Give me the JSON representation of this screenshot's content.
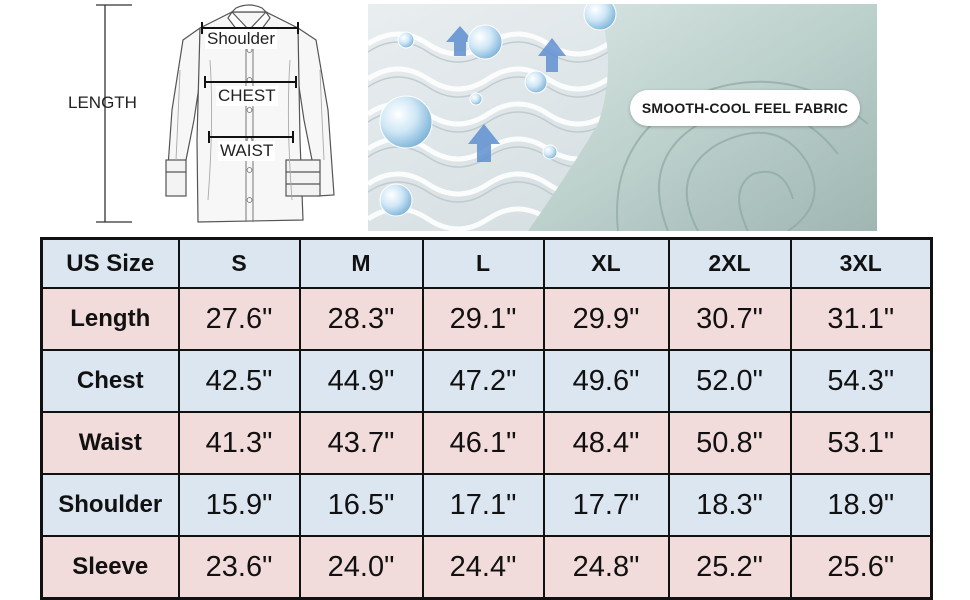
{
  "diagram": {
    "length_label": "LENGTH",
    "shoulder_label": "Shoulder",
    "chest_label": "CHEST",
    "waist_label": "WAIST"
  },
  "fabric": {
    "callout": "SMOOTH-COOL FEEL FABRIC"
  },
  "table": {
    "header_label": "US Size",
    "sizes": [
      "S",
      "M",
      "L",
      "XL",
      "2XL",
      "3XL"
    ],
    "rows": [
      {
        "label": "Length",
        "values": [
          "27.6\"",
          "28.3\"",
          "29.1\"",
          "29.9\"",
          "30.7\"",
          "31.1\""
        ]
      },
      {
        "label": "Chest",
        "values": [
          "42.5\"",
          "44.9\"",
          "47.2\"",
          "49.6\"",
          "52.0\"",
          "54.3\""
        ]
      },
      {
        "label": "Waist",
        "values": [
          "41.3\"",
          "43.7\"",
          "46.1\"",
          "48.4\"",
          "50.8\"",
          "53.1\""
        ]
      },
      {
        "label": "Shoulder",
        "values": [
          "15.9\"",
          "16.5\"",
          "17.1\"",
          "17.7\"",
          "18.3\"",
          "18.9\""
        ]
      },
      {
        "label": "Sleeve",
        "values": [
          "23.6\"",
          "24.0\"",
          "24.4\"",
          "24.8\"",
          "25.2\"",
          "25.6\""
        ]
      }
    ],
    "row_colors": [
      "#dce6f1",
      "#f2dcdb",
      "#dce6f1",
      "#f2dcdb",
      "#dce6f1",
      "#f2dcdb"
    ]
  }
}
